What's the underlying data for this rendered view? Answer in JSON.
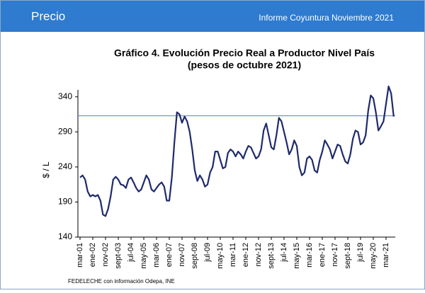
{
  "header": {
    "title": "Precio",
    "subtitle": "Informe Coyuntura Noviembre 2021"
  },
  "chart_data": {
    "type": "line",
    "title": "Gráfico 4. Evolución Precio Real a Productor Nivel País",
    "subtitle": "(pesos de octubre 2021)",
    "y_label": "$ / L",
    "source": "FEDELECHE con información Odepa, INE",
    "categories": [
      "mar-01",
      null,
      null,
      null,
      null,
      "ene-02",
      null,
      null,
      null,
      null,
      "nov-02",
      null,
      null,
      null,
      null,
      "sept-03",
      null,
      null,
      null,
      null,
      "jul-04",
      null,
      null,
      null,
      null,
      "may-05",
      null,
      null,
      null,
      null,
      "mar-06",
      null,
      null,
      null,
      null,
      "ene-07",
      null,
      null,
      null,
      null,
      "nov-07",
      null,
      null,
      null,
      null,
      "sept-08",
      null,
      null,
      null,
      null,
      "jul-09",
      null,
      null,
      null,
      null,
      "may-10",
      null,
      null,
      null,
      null,
      "mar-11",
      null,
      null,
      null,
      null,
      "ene-12",
      null,
      null,
      null,
      null,
      "nov-12",
      null,
      null,
      null,
      null,
      "sept-13",
      null,
      null,
      null,
      null,
      "jul-14",
      null,
      null,
      null,
      null,
      "may-15",
      null,
      null,
      null,
      null,
      "mar-16",
      null,
      null,
      null,
      null,
      "ene-17",
      null,
      null,
      null,
      null,
      "nov-17",
      null,
      null,
      null,
      null,
      "sept-18",
      null,
      null,
      null,
      null,
      "jul-19",
      null,
      null,
      null,
      null,
      "may-20",
      null,
      null,
      null,
      null,
      "mar-21",
      null,
      null,
      null
    ],
    "series": [
      {
        "name": "Precio real",
        "color": "#1f2a6b",
        "values": [
          225,
          228,
          222,
          205,
          198,
          200,
          198,
          200,
          192,
          172,
          170,
          180,
          198,
          222,
          226,
          222,
          215,
          214,
          210,
          222,
          225,
          218,
          210,
          205,
          208,
          218,
          228,
          222,
          208,
          205,
          210,
          215,
          218,
          212,
          192,
          192,
          225,
          275,
          318,
          315,
          303,
          312,
          305,
          290,
          265,
          235,
          220,
          228,
          222,
          212,
          215,
          232,
          240,
          262,
          262,
          250,
          238,
          240,
          260,
          265,
          262,
          255,
          262,
          258,
          252,
          262,
          270,
          268,
          260,
          252,
          255,
          265,
          292,
          302,
          285,
          268,
          265,
          285,
          310,
          305,
          290,
          275,
          258,
          265,
          278,
          270,
          240,
          228,
          232,
          252,
          255,
          250,
          235,
          232,
          250,
          262,
          278,
          272,
          265,
          252,
          262,
          272,
          270,
          258,
          248,
          245,
          258,
          280,
          292,
          290,
          272,
          275,
          285,
          320,
          342,
          338,
          318,
          292,
          298,
          305,
          330,
          355,
          345,
          312
        ]
      }
    ],
    "reference_line": 313,
    "reference_color": "#5b7fbf",
    "ylim": [
      140,
      360
    ],
    "yticks": [
      140,
      190,
      240,
      290,
      340
    ]
  }
}
